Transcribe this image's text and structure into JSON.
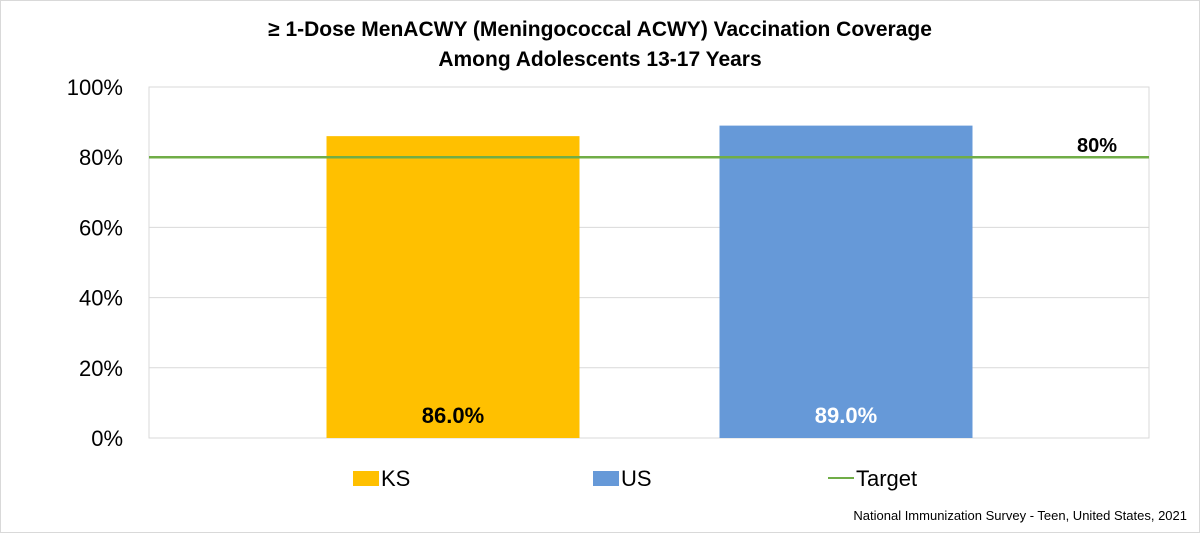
{
  "chart_data": {
    "type": "bar",
    "title_lines": [
      "≥ 1-Dose MenACWY (Meningococcal ACWY) Vaccination Coverage",
      "Among Adolescents 13-17 Years"
    ],
    "categories": [
      "KS",
      "US"
    ],
    "values": [
      86.0,
      89.0
    ],
    "data_labels": [
      "86.0%",
      "89.0%"
    ],
    "bar_colors": [
      "#FFC000",
      "#6699D8"
    ],
    "label_colors": [
      "#000000",
      "#ffffff"
    ],
    "ylim": [
      0,
      100
    ],
    "yticks": [
      0,
      20,
      40,
      60,
      80,
      100
    ],
    "ytick_labels": [
      "0%",
      "20%",
      "40%",
      "60%",
      "80%",
      "100%"
    ],
    "grid": true,
    "target": {
      "name": "Target",
      "value": 80,
      "label": "80%",
      "color": "#70AD47"
    },
    "legend": {
      "position": "bottom",
      "items": [
        {
          "label": "KS",
          "type": "box",
          "color": "#FFC000"
        },
        {
          "label": "US",
          "type": "box",
          "color": "#6699D8"
        },
        {
          "label": "Target",
          "type": "line",
          "color": "#70AD47"
        }
      ]
    }
  },
  "source_note": "National Immunization Survey - Teen, United States, 2021"
}
